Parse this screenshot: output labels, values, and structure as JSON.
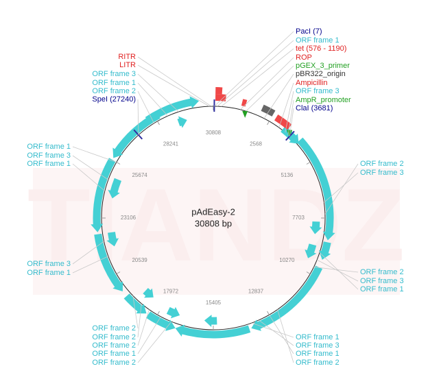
{
  "watermark": "TIANDZ",
  "plasmid": {
    "name": "pAdEasy-2",
    "size": "30808 bp"
  },
  "position_ticks": [
    "30808",
    "2568",
    "5136",
    "7703",
    "10270",
    "12837",
    "15405",
    "17972",
    "20539",
    "23106",
    "25674",
    "28241"
  ],
  "labels": [
    {
      "text": "PacI (7)",
      "color": "#00008b"
    },
    {
      "text": "ORF frame 1",
      "color": "#33bbcc"
    },
    {
      "text": "tet (576 - 1190)",
      "color": "#e02020"
    },
    {
      "text": "ROP",
      "color": "#e02020"
    },
    {
      "text": "pGEX_3_primer",
      "color": "#22a022"
    },
    {
      "text": "pBR322_origin",
      "color": "#333333"
    },
    {
      "text": "Ampicillin",
      "color": "#e02020"
    },
    {
      "text": "ORF frame 3",
      "color": "#33bbcc"
    },
    {
      "text": "AmpR_promoter",
      "color": "#22a022"
    },
    {
      "text": "ClaI (3681)",
      "color": "#00008b"
    },
    {
      "text": "RITR",
      "color": "#e02020"
    },
    {
      "text": "LITR",
      "color": "#e02020"
    },
    {
      "text": "ORF frame 3",
      "color": "#33bbcc"
    },
    {
      "text": "ORF frame 1",
      "color": "#33bbcc"
    },
    {
      "text": "ORF frame 2",
      "color": "#33bbcc"
    },
    {
      "text": "SpeI (27240)",
      "color": "#00008b"
    },
    {
      "text": "ORF frame 1",
      "color": "#33bbcc"
    },
    {
      "text": "ORF frame 3",
      "color": "#33bbcc"
    },
    {
      "text": "ORF frame 1",
      "color": "#33bbcc"
    },
    {
      "text": "ORF frame 3",
      "color": "#33bbcc"
    },
    {
      "text": "ORF frame 1",
      "color": "#33bbcc"
    },
    {
      "text": "ORF frame 2",
      "color": "#33bbcc"
    },
    {
      "text": "ORF frame 2",
      "color": "#33bbcc"
    },
    {
      "text": "ORF frame 2",
      "color": "#33bbcc"
    },
    {
      "text": "ORF frame 1",
      "color": "#33bbcc"
    },
    {
      "text": "ORF frame 2",
      "color": "#33bbcc"
    },
    {
      "text": "ORF frame 1",
      "color": "#33bbcc"
    },
    {
      "text": "ORF frame 3",
      "color": "#33bbcc"
    },
    {
      "text": "ORF frame 1",
      "color": "#33bbcc"
    },
    {
      "text": "ORF frame 2",
      "color": "#33bbcc"
    },
    {
      "text": "ORF frame 2",
      "color": "#33bbcc"
    },
    {
      "text": "ORF frame 3",
      "color": "#33bbcc"
    },
    {
      "text": "ORF frame 2",
      "color": "#33bbcc"
    },
    {
      "text": "ORF frame 3",
      "color": "#33bbcc"
    },
    {
      "text": "ORF frame 1",
      "color": "#33bbcc"
    }
  ]
}
